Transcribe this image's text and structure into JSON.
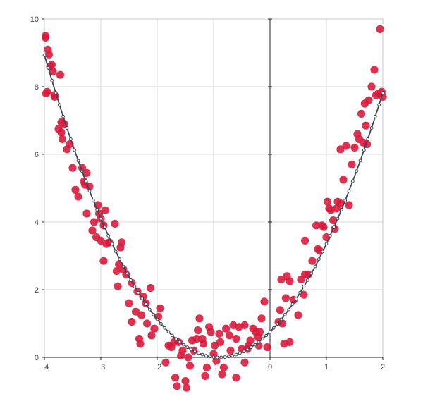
{
  "chart_data": {
    "type": "scatter",
    "title": "",
    "xlabel": "",
    "ylabel": "",
    "xlim": [
      -4,
      2
    ],
    "ylim": [
      0,
      10
    ],
    "grid": true,
    "xticks": [
      -4,
      -3,
      -2,
      -1,
      0,
      1,
      2
    ],
    "yticks": [
      0,
      2,
      4,
      6,
      8,
      10
    ],
    "xtick_labels": [
      "−4",
      "−3",
      "−2",
      "−1",
      "0",
      "1",
      "2"
    ],
    "ytick_labels": [
      "0",
      "2",
      "4",
      "6",
      "8",
      "10"
    ],
    "colors": {
      "points": "#d81b3c",
      "curve": "#3b4656",
      "curve_markers": "#ffffff",
      "grid": "#d8d8d8",
      "axis": "#222222"
    },
    "series": [
      {
        "kind": "scatter",
        "points": [
          [
            -3.98,
            9.45
          ],
          [
            -3.98,
            9.5
          ],
          [
            -3.97,
            7.8
          ],
          [
            -3.95,
            7.85
          ],
          [
            -3.94,
            9.1
          ],
          [
            -3.92,
            8.95
          ],
          [
            -3.9,
            8.6
          ],
          [
            -3.87,
            8.65
          ],
          [
            -3.85,
            8.45
          ],
          [
            -3.82,
            7.75
          ],
          [
            -3.82,
            7.7
          ],
          [
            -3.72,
            8.35
          ],
          [
            -3.75,
            6.75
          ],
          [
            -3.7,
            6.95
          ],
          [
            -3.7,
            6.65
          ],
          [
            -3.68,
            6.45
          ],
          [
            -3.65,
            6.9
          ],
          [
            -3.6,
            6.15
          ],
          [
            -3.55,
            6.3
          ],
          [
            -3.5,
            5.6
          ],
          [
            -3.45,
            4.95
          ],
          [
            -3.4,
            4.75
          ],
          [
            -3.33,
            5.6
          ],
          [
            -3.3,
            5.2
          ],
          [
            -3.28,
            5.1
          ],
          [
            -3.25,
            4.25
          ],
          [
            -3.25,
            5.45
          ],
          [
            -3.2,
            5.05
          ],
          [
            -3.15,
            3.75
          ],
          [
            -3.12,
            4.0
          ],
          [
            -3.08,
            3.55
          ],
          [
            -3.05,
            4.5
          ],
          [
            -3.03,
            4.25
          ],
          [
            -3.0,
            4.1
          ],
          [
            -3.0,
            3.45
          ],
          [
            -2.95,
            2.85
          ],
          [
            -2.95,
            3.9
          ],
          [
            -2.92,
            4.35
          ],
          [
            -2.9,
            3.35
          ],
          [
            -2.85,
            3.4
          ],
          [
            -2.75,
            3.95
          ],
          [
            -2.72,
            2.55
          ],
          [
            -2.7,
            2.1
          ],
          [
            -2.68,
            2.75
          ],
          [
            -2.65,
            3.25
          ],
          [
            -2.63,
            3.4
          ],
          [
            -2.6,
            2.6
          ],
          [
            -2.55,
            2.45
          ],
          [
            -2.5,
            1.6
          ],
          [
            -2.45,
            2.2
          ],
          [
            -2.45,
            1.05
          ],
          [
            -2.38,
            1.35
          ],
          [
            -2.35,
            1.95
          ],
          [
            -2.32,
            0.55
          ],
          [
            -2.3,
            0.4
          ],
          [
            -2.28,
            1.25
          ],
          [
            -2.25,
            1.8
          ],
          [
            -2.2,
            1.6
          ],
          [
            -2.18,
            1.0
          ],
          [
            -2.12,
            2.05
          ],
          [
            -2.1,
            0.65
          ],
          [
            -2.05,
            0.85
          ],
          [
            -1.98,
            1.2
          ],
          [
            -1.95,
            1.45
          ],
          [
            -1.85,
            -0.15
          ],
          [
            -1.8,
            0.35
          ],
          [
            -1.75,
            0.3
          ],
          [
            -1.7,
            0.45
          ],
          [
            -1.68,
            -0.6
          ],
          [
            -1.65,
            -0.85
          ],
          [
            -1.62,
            0.45
          ],
          [
            -1.58,
            0.05
          ],
          [
            -1.55,
            0.2
          ],
          [
            -1.5,
            -0.7
          ],
          [
            -1.48,
            -0.9
          ],
          [
            -1.45,
            0.0
          ],
          [
            -1.42,
            -0.25
          ],
          [
            -1.38,
            0.5
          ],
          [
            -1.35,
            0.2
          ],
          [
            -1.3,
            0.55
          ],
          [
            -1.28,
            0.8
          ],
          [
            -1.25,
            1.15
          ],
          [
            -1.2,
            0.55
          ],
          [
            -1.18,
            0.4
          ],
          [
            -1.15,
            -0.55
          ],
          [
            -1.12,
            -0.3
          ],
          [
            -1.08,
            0.9
          ],
          [
            -1.05,
            0.75
          ],
          [
            -1.0,
            0.1
          ],
          [
            -0.98,
            0.35
          ],
          [
            -0.95,
            -0.1
          ],
          [
            -0.9,
            0.7
          ],
          [
            -0.88,
            0.45
          ],
          [
            -0.85,
            -0.5
          ],
          [
            -0.82,
            -0.3
          ],
          [
            -0.78,
            0.85
          ],
          [
            -0.72,
            0.65
          ],
          [
            -0.7,
            0.2
          ],
          [
            -0.65,
            0.95
          ],
          [
            -0.6,
            0.55
          ],
          [
            -0.6,
            -0.6
          ],
          [
            -0.55,
            0.9
          ],
          [
            -0.5,
            0.25
          ],
          [
            -0.45,
            -0.15
          ],
          [
            -0.45,
            0.95
          ],
          [
            -0.4,
            0.25
          ],
          [
            -0.38,
            0.35
          ],
          [
            -0.35,
            0.5
          ],
          [
            -0.3,
            0.85
          ],
          [
            -0.25,
            0.75
          ],
          [
            -0.22,
            0.6
          ],
          [
            -0.2,
            0.35
          ],
          [
            -0.18,
            0.75
          ],
          [
            -0.15,
            1.15
          ],
          [
            -0.1,
            1.65
          ],
          [
            -0.05,
            0.3
          ],
          [
            0.15,
            1.05
          ],
          [
            0.18,
            1.4
          ],
          [
            0.2,
            2.3
          ],
          [
            0.22,
            1.0
          ],
          [
            0.25,
            0.4
          ],
          [
            0.28,
            1.75
          ],
          [
            0.3,
            2.4
          ],
          [
            0.35,
            2.25
          ],
          [
            0.35,
            0.45
          ],
          [
            0.42,
            1.7
          ],
          [
            0.5,
            1.25
          ],
          [
            0.55,
            2.3
          ],
          [
            0.6,
            1.85
          ],
          [
            0.62,
            3.45
          ],
          [
            0.62,
            2.45
          ],
          [
            0.68,
            2.45
          ],
          [
            0.75,
            2.85
          ],
          [
            0.85,
            3.2
          ],
          [
            0.82,
            3.9
          ],
          [
            0.88,
            3.15
          ],
          [
            0.92,
            3.9
          ],
          [
            0.95,
            3.85
          ],
          [
            1.0,
            3.55
          ],
          [
            1.02,
            4.6
          ],
          [
            1.05,
            4.4
          ],
          [
            1.08,
            4.35
          ],
          [
            1.12,
            4.05
          ],
          [
            1.15,
            3.8
          ],
          [
            1.18,
            4.4
          ],
          [
            1.2,
            4.6
          ],
          [
            1.25,
            4.55
          ],
          [
            1.3,
            5.25
          ],
          [
            1.35,
            6.25
          ],
          [
            1.4,
            4.5
          ],
          [
            1.45,
            5.7
          ],
          [
            1.5,
            6.2
          ],
          [
            1.55,
            6.6
          ],
          [
            1.58,
            6.45
          ],
          [
            1.62,
            7.2
          ],
          [
            1.65,
            6.35
          ],
          [
            1.68,
            7.5
          ],
          [
            1.7,
            6.85
          ],
          [
            1.72,
            6.3
          ],
          [
            1.75,
            7.6
          ],
          [
            1.8,
            8.0
          ],
          [
            1.85,
            8.5
          ],
          [
            1.88,
            7.75
          ],
          [
            1.92,
            7.8
          ],
          [
            1.95,
            9.7
          ],
          [
            1.98,
            7.85
          ],
          [
            2.0,
            7.7
          ],
          [
            1.25,
            6.15
          ]
        ]
      },
      {
        "kind": "line",
        "function": "(x + 0.9)^2 * 0.93",
        "x_range": [
          -4,
          2
        ]
      }
    ]
  }
}
